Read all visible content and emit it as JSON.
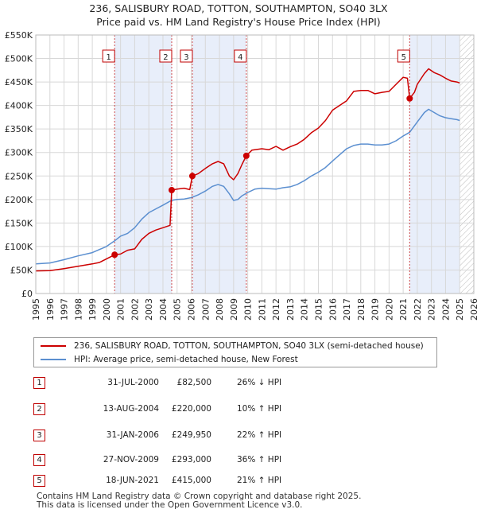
{
  "header": {
    "title_line1": "236, SALISBURY ROAD, TOTTON, SOUTHAMPTON, SO40 3LX",
    "title_line2": "Price paid vs. HM Land Registry's House Price Index (HPI)"
  },
  "colors": {
    "property_line": "#cc0000",
    "hpi_line": "#5b8fd0",
    "shade": "#e8eefa",
    "grid": "#d8d8d8",
    "hatch": "#bbbbbb",
    "marker_border": "#c00000"
  },
  "chart_data": {
    "type": "line",
    "title": "236, SALISBURY ROAD, TOTTON, SOUTHAMPTON, SO40 3LX",
    "subtitle": "Price paid vs. HM Land Registry's House Price Index (HPI)",
    "xlim": [
      1995,
      2026
    ],
    "ylim": [
      0,
      550000
    ],
    "x_ticks": [
      "1995",
      "1996",
      "1997",
      "1998",
      "1999",
      "2000",
      "2001",
      "2002",
      "2003",
      "2004",
      "2005",
      "2006",
      "2007",
      "2008",
      "2009",
      "2010",
      "2011",
      "2012",
      "2013",
      "2014",
      "2015",
      "2016",
      "2017",
      "2018",
      "2019",
      "2020",
      "2021",
      "2022",
      "2023",
      "2024",
      "2025",
      "2026"
    ],
    "y_ticks": [
      {
        "value": 0,
        "label": "£0"
      },
      {
        "value": 50000,
        "label": "£50K"
      },
      {
        "value": 100000,
        "label": "£100K"
      },
      {
        "value": 150000,
        "label": "£150K"
      },
      {
        "value": 200000,
        "label": "£200K"
      },
      {
        "value": 250000,
        "label": "£250K"
      },
      {
        "value": 300000,
        "label": "£300K"
      },
      {
        "value": 350000,
        "label": "£350K"
      },
      {
        "value": 400000,
        "label": "£400K"
      },
      {
        "value": 450000,
        "label": "£450K"
      },
      {
        "value": 500000,
        "label": "£500K"
      },
      {
        "value": 550000,
        "label": "£550K"
      }
    ],
    "grid": true,
    "legend_position": "below",
    "hatched_future_from": 2025.0,
    "series": [
      {
        "name": "236, SALISBURY ROAD, TOTTON, SOUTHAMPTON, SO40 3LX (semi-detached house)",
        "color": "#cc0000",
        "points": [
          [
            1995.0,
            48000
          ],
          [
            1996.0,
            48500
          ],
          [
            1997.0,
            53000
          ],
          [
            1998.0,
            58000
          ],
          [
            1999.0,
            63000
          ],
          [
            1999.5,
            66000
          ],
          [
            2000.58,
            82500
          ],
          [
            2001.0,
            84000
          ],
          [
            2001.5,
            92000
          ],
          [
            2002.0,
            95000
          ],
          [
            2002.5,
            115000
          ],
          [
            2003.0,
            128000
          ],
          [
            2003.5,
            135000
          ],
          [
            2004.0,
            140000
          ],
          [
            2004.5,
            145000
          ],
          [
            2004.62,
            220000
          ],
          [
            2005.0,
            222000
          ],
          [
            2005.5,
            224000
          ],
          [
            2005.9,
            221000
          ],
          [
            2006.08,
            249950
          ],
          [
            2006.5,
            255000
          ],
          [
            2007.0,
            266000
          ],
          [
            2007.5,
            276000
          ],
          [
            2007.9,
            281000
          ],
          [
            2008.3,
            276000
          ],
          [
            2008.7,
            250000
          ],
          [
            2009.0,
            242000
          ],
          [
            2009.3,
            255000
          ],
          [
            2009.6,
            275000
          ],
          [
            2009.9,
            293000
          ],
          [
            2010.3,
            305000
          ],
          [
            2011.0,
            308000
          ],
          [
            2011.5,
            306000
          ],
          [
            2012.0,
            313000
          ],
          [
            2012.5,
            305000
          ],
          [
            2013.0,
            312000
          ],
          [
            2013.5,
            318000
          ],
          [
            2014.0,
            328000
          ],
          [
            2014.5,
            342000
          ],
          [
            2015.0,
            352000
          ],
          [
            2015.5,
            368000
          ],
          [
            2016.0,
            390000
          ],
          [
            2016.5,
            400000
          ],
          [
            2017.0,
            410000
          ],
          [
            2017.5,
            430000
          ],
          [
            2018.0,
            432000
          ],
          [
            2018.5,
            432000
          ],
          [
            2019.0,
            425000
          ],
          [
            2019.5,
            428000
          ],
          [
            2020.0,
            430000
          ],
          [
            2020.5,
            445000
          ],
          [
            2021.0,
            460000
          ],
          [
            2021.3,
            458000
          ],
          [
            2021.46,
            415000
          ],
          [
            2021.8,
            428000
          ],
          [
            2022.0,
            445000
          ],
          [
            2022.5,
            468000
          ],
          [
            2022.8,
            478000
          ],
          [
            2023.2,
            470000
          ],
          [
            2023.6,
            465000
          ],
          [
            2024.0,
            458000
          ],
          [
            2024.4,
            452000
          ],
          [
            2024.8,
            450000
          ],
          [
            2025.0,
            448000
          ]
        ]
      },
      {
        "name": "HPI: Average price, semi-detached house, New Forest",
        "color": "#5b8fd0",
        "points": [
          [
            1995.0,
            63000
          ],
          [
            1996.0,
            65000
          ],
          [
            1997.0,
            72000
          ],
          [
            1998.0,
            80000
          ],
          [
            1999.0,
            87000
          ],
          [
            2000.0,
            100000
          ],
          [
            2000.58,
            112000
          ],
          [
            2001.0,
            122000
          ],
          [
            2001.5,
            128000
          ],
          [
            2002.0,
            140000
          ],
          [
            2002.5,
            158000
          ],
          [
            2003.0,
            172000
          ],
          [
            2003.5,
            180000
          ],
          [
            2004.0,
            188000
          ],
          [
            2004.6,
            198000
          ],
          [
            2005.0,
            200000
          ],
          [
            2005.5,
            201000
          ],
          [
            2006.0,
            204000
          ],
          [
            2006.5,
            210000
          ],
          [
            2007.0,
            218000
          ],
          [
            2007.5,
            228000
          ],
          [
            2007.9,
            232000
          ],
          [
            2008.3,
            228000
          ],
          [
            2008.7,
            212000
          ],
          [
            2009.0,
            198000
          ],
          [
            2009.3,
            200000
          ],
          [
            2009.6,
            208000
          ],
          [
            2010.0,
            215000
          ],
          [
            2010.5,
            222000
          ],
          [
            2011.0,
            224000
          ],
          [
            2011.5,
            223000
          ],
          [
            2012.0,
            222000
          ],
          [
            2012.5,
            225000
          ],
          [
            2013.0,
            227000
          ],
          [
            2013.5,
            232000
          ],
          [
            2014.0,
            240000
          ],
          [
            2014.5,
            250000
          ],
          [
            2015.0,
            258000
          ],
          [
            2015.5,
            268000
          ],
          [
            2016.0,
            282000
          ],
          [
            2016.5,
            295000
          ],
          [
            2017.0,
            308000
          ],
          [
            2017.5,
            315000
          ],
          [
            2018.0,
            318000
          ],
          [
            2018.5,
            318000
          ],
          [
            2019.0,
            316000
          ],
          [
            2019.5,
            316000
          ],
          [
            2020.0,
            318000
          ],
          [
            2020.5,
            325000
          ],
          [
            2021.0,
            335000
          ],
          [
            2021.46,
            343000
          ],
          [
            2022.0,
            365000
          ],
          [
            2022.5,
            385000
          ],
          [
            2022.8,
            392000
          ],
          [
            2023.2,
            385000
          ],
          [
            2023.6,
            378000
          ],
          [
            2024.0,
            374000
          ],
          [
            2024.4,
            372000
          ],
          [
            2024.8,
            370000
          ],
          [
            2025.0,
            368000
          ]
        ]
      }
    ],
    "sales": [
      {
        "num": "1",
        "date": "31-JUL-2000",
        "x": 2000.58,
        "price": 82500,
        "price_label": "£82,500",
        "hpi": "26% ↓ HPI"
      },
      {
        "num": "2",
        "date": "13-AUG-2004",
        "x": 2004.62,
        "price": 220000,
        "price_label": "£220,000",
        "hpi": "10% ↑ HPI"
      },
      {
        "num": "3",
        "date": "31-JAN-2006",
        "x": 2006.08,
        "price": 249950,
        "price_label": "£249,950",
        "hpi": "22% ↑ HPI"
      },
      {
        "num": "4",
        "date": "27-NOV-2009",
        "x": 2009.9,
        "price": 293000,
        "price_label": "£293,000",
        "hpi": "36% ↑ HPI"
      },
      {
        "num": "5",
        "date": "18-JUN-2021",
        "x": 2021.46,
        "price": 415000,
        "price_label": "£415,000",
        "hpi": "21% ↑ HPI"
      }
    ],
    "shaded_spans": [
      [
        2000.58,
        2004.62
      ],
      [
        2006.08,
        2009.9
      ],
      [
        2021.46,
        2025.0
      ]
    ]
  },
  "legend": {
    "property_label": "236, SALISBURY ROAD, TOTTON, SOUTHAMPTON, SO40 3LX (semi-detached house)",
    "hpi_label": "HPI: Average price, semi-detached house, New Forest"
  },
  "footer": {
    "line1": "Contains HM Land Registry data © Crown copyright and database right 2025.",
    "line2": "This data is licensed under the Open Government Licence v3.0."
  }
}
